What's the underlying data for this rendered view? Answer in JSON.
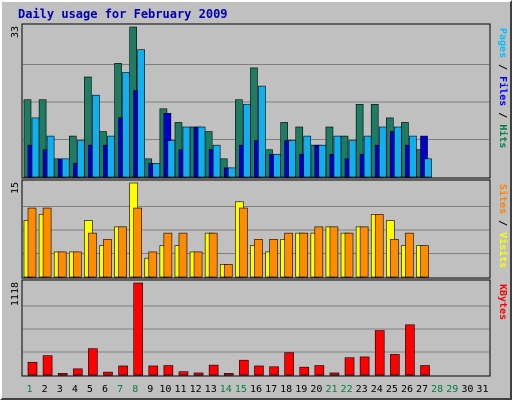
{
  "title": "Daily usage for February 2009",
  "chart_data": [
    {
      "type": "bar",
      "panel": "hits-files-pages",
      "y_max_label": "33",
      "ylim": [
        0,
        33
      ],
      "grid": true,
      "legend_vertical": [
        {
          "text": "Pages",
          "color": "#00c0ff"
        },
        {
          "text": " / ",
          "color": "#000000"
        },
        {
          "text": "Files",
          "color": "#0000ff"
        },
        {
          "text": " / ",
          "color": "#000000"
        },
        {
          "text": "Hits",
          "color": "#008040"
        }
      ],
      "categories": [
        "1",
        "2",
        "3",
        "4",
        "5",
        "6",
        "7",
        "8",
        "9",
        "10",
        "11",
        "12",
        "13",
        "14",
        "15",
        "16",
        "17",
        "18",
        "19",
        "20",
        "21",
        "22",
        "23",
        "24",
        "25",
        "26",
        "27",
        "28",
        "29",
        "30",
        "31"
      ],
      "series": [
        {
          "name": "Hits",
          "color": "#1d7c62",
          "values": [
            17,
            17,
            4,
            9,
            22,
            10,
            25,
            33,
            4,
            15,
            12,
            11,
            10,
            4,
            17,
            24,
            6,
            12,
            11,
            7,
            11,
            9,
            16,
            16,
            13,
            12,
            6,
            0,
            0,
            0,
            0
          ]
        },
        {
          "name": "Files",
          "color": "#0000cc",
          "values": [
            7,
            6,
            4,
            3,
            7,
            7,
            13,
            19,
            3,
            14,
            6,
            11,
            6,
            2,
            7,
            8,
            5,
            8,
            5,
            7,
            5,
            4,
            5,
            7,
            10,
            7,
            9,
            0,
            0,
            0,
            0
          ]
        },
        {
          "name": "Pages",
          "color": "#10b0ee",
          "values": [
            13,
            9,
            4,
            8,
            18,
            9,
            23,
            28,
            3,
            8,
            11,
            11,
            7,
            2,
            16,
            20,
            5,
            8,
            9,
            7,
            9,
            8,
            9,
            11,
            11,
            9,
            4,
            0,
            0,
            0,
            0
          ]
        }
      ]
    },
    {
      "type": "bar",
      "panel": "visits-sites",
      "y_max_label": "15",
      "ylim": [
        0,
        15
      ],
      "grid": true,
      "legend_vertical": [
        {
          "text": "Sites",
          "color": "#ff8000"
        },
        {
          "text": " / ",
          "color": "#000000"
        },
        {
          "text": "Visits",
          "color": "#ffff00"
        }
      ],
      "categories": [
        "1",
        "2",
        "3",
        "4",
        "5",
        "6",
        "7",
        "8",
        "9",
        "10",
        "11",
        "12",
        "13",
        "14",
        "15",
        "16",
        "17",
        "18",
        "19",
        "20",
        "21",
        "22",
        "23",
        "24",
        "25",
        "26",
        "27",
        "28",
        "29",
        "30",
        "31"
      ],
      "series": [
        {
          "name": "Visits",
          "color": "#ffff00",
          "values": [
            9,
            10,
            4,
            4,
            9,
            5,
            8,
            15,
            3,
            5,
            5,
            4,
            7,
            2,
            12,
            5,
            4,
            6,
            7,
            7,
            8,
            7,
            8,
            10,
            9,
            5,
            5,
            0,
            0,
            0,
            0
          ]
        },
        {
          "name": "Sites",
          "color": "#ff8c00",
          "values": [
            11,
            11,
            4,
            4,
            7,
            6,
            8,
            11,
            4,
            7,
            7,
            4,
            7,
            2,
            11,
            6,
            6,
            7,
            7,
            8,
            8,
            7,
            8,
            10,
            6,
            7,
            5,
            0,
            0,
            0,
            0
          ]
        }
      ]
    },
    {
      "type": "bar",
      "panel": "kbytes",
      "y_max_label": "1118",
      "ylim": [
        0,
        1118
      ],
      "grid": true,
      "legend_vertical": [
        {
          "text": "KBytes",
          "color": "#ff0000"
        }
      ],
      "categories": [
        "1",
        "2",
        "3",
        "4",
        "5",
        "6",
        "7",
        "8",
        "9",
        "10",
        "11",
        "12",
        "13",
        "14",
        "15",
        "16",
        "17",
        "18",
        "19",
        "20",
        "21",
        "22",
        "23",
        "24",
        "25",
        "26",
        "27",
        "28",
        "29",
        "30",
        "31"
      ],
      "series": [
        {
          "name": "KBytes",
          "color": "#ff0000",
          "values": [
            155,
            235,
            20,
            75,
            320,
            35,
            110,
            1118,
            110,
            115,
            40,
            25,
            120,
            20,
            180,
            110,
            100,
            270,
            95,
            115,
            25,
            210,
            220,
            540,
            250,
            610,
            115,
            0,
            0,
            0,
            0
          ]
        }
      ]
    }
  ],
  "x_axis_weekend_color": "#008040",
  "x_axis_weekday_color": "#000000",
  "weekend_days": [
    "1",
    "7",
    "8",
    "14",
    "15",
    "21",
    "22",
    "28",
    "29"
  ]
}
